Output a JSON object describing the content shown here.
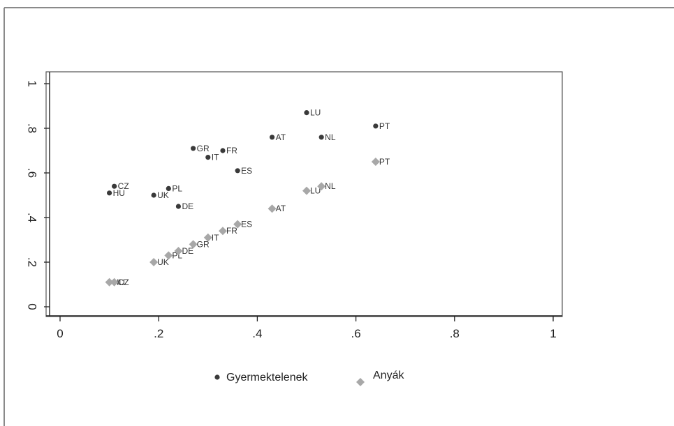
{
  "chart_data": {
    "type": "scatter",
    "title": "",
    "xlabel": "",
    "ylabel": "",
    "xlim": [
      0,
      1
    ],
    "ylim": [
      0,
      1
    ],
    "x_ticks": [
      "0",
      ".2",
      ".4",
      ".6",
      ".8",
      "1"
    ],
    "y_ticks": [
      "0",
      ".2",
      ".4",
      ".6",
      ".8",
      "1"
    ],
    "grid": false,
    "legend_position": "bottom",
    "series": [
      {
        "name": "Gyermektelenek",
        "marker": "small-dot",
        "color": "#3a3a3a",
        "points": [
          {
            "label": "CZ",
            "x": 0.11,
            "y": 0.54
          },
          {
            "label": "HU",
            "x": 0.1,
            "y": 0.51
          },
          {
            "label": "UK",
            "x": 0.19,
            "y": 0.5
          },
          {
            "label": "PL",
            "x": 0.22,
            "y": 0.53
          },
          {
            "label": "DE",
            "x": 0.24,
            "y": 0.45
          },
          {
            "label": "GR",
            "x": 0.27,
            "y": 0.71
          },
          {
            "label": "IT",
            "x": 0.3,
            "y": 0.67
          },
          {
            "label": "FR",
            "x": 0.33,
            "y": 0.7
          },
          {
            "label": "ES",
            "x": 0.36,
            "y": 0.61
          },
          {
            "label": "AT",
            "x": 0.43,
            "y": 0.76
          },
          {
            "label": "LU",
            "x": 0.5,
            "y": 0.87
          },
          {
            "label": "NL",
            "x": 0.53,
            "y": 0.76
          },
          {
            "label": "PT",
            "x": 0.64,
            "y": 0.81
          }
        ]
      },
      {
        "name": "Anyák",
        "marker": "diamond",
        "color": "#a8a8a8",
        "points": [
          {
            "label": "HU",
            "x": 0.1,
            "y": 0.11
          },
          {
            "label": "CZ",
            "x": 0.11,
            "y": 0.11
          },
          {
            "label": "UK",
            "x": 0.19,
            "y": 0.2
          },
          {
            "label": "PL",
            "x": 0.22,
            "y": 0.23
          },
          {
            "label": "DE",
            "x": 0.24,
            "y": 0.25
          },
          {
            "label": "GR",
            "x": 0.27,
            "y": 0.28
          },
          {
            "label": "IT",
            "x": 0.3,
            "y": 0.31
          },
          {
            "label": "FR",
            "x": 0.33,
            "y": 0.34
          },
          {
            "label": "ES",
            "x": 0.36,
            "y": 0.37
          },
          {
            "label": "AT",
            "x": 0.43,
            "y": 0.44
          },
          {
            "label": "LU",
            "x": 0.5,
            "y": 0.52
          },
          {
            "label": "NL",
            "x": 0.53,
            "y": 0.54
          },
          {
            "label": "PT",
            "x": 0.64,
            "y": 0.65
          }
        ]
      }
    ]
  }
}
